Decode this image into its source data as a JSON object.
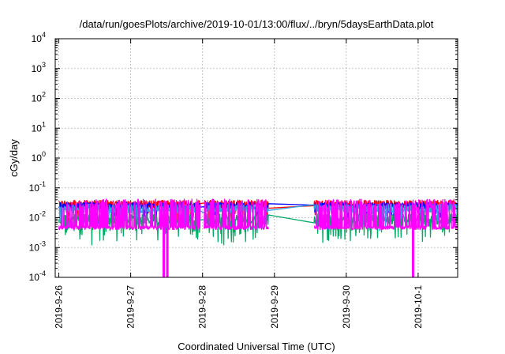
{
  "chart_data": {
    "type": "line",
    "title": "/data/run/goesPlots/archive/2019-10-01/13:00/flux/../bryn/5daysEarthData.plot",
    "xlabel": "Coordinated Universal Time (UTC)",
    "ylabel": "cGy/day",
    "x_unit": "days",
    "xlim": [
      -0.05,
      5.55
    ],
    "ylim": [
      0.0001,
      10000
    ],
    "y_scale": "log",
    "grid": true,
    "legend": "none",
    "x_ticks": [
      {
        "pos": 0.0,
        "label": "2019-9-26"
      },
      {
        "pos": 1.0,
        "label": "2019-9-27"
      },
      {
        "pos": 2.0,
        "label": "2019-9-28"
      },
      {
        "pos": 3.0,
        "label": "2019-9-29"
      },
      {
        "pos": 4.0,
        "label": "2019-9-30"
      },
      {
        "pos": 5.0,
        "label": "2019-10-1"
      }
    ],
    "y_ticks": [
      {
        "value": 0.0001,
        "base": "10",
        "exp": "-4"
      },
      {
        "value": 0.001,
        "base": "10",
        "exp": "-3"
      },
      {
        "value": 0.01,
        "base": "10",
        "exp": "-2"
      },
      {
        "value": 0.1,
        "base": "10",
        "exp": "-1"
      },
      {
        "value": 1,
        "base": "10",
        "exp": "0"
      },
      {
        "value": 10,
        "base": "10",
        "exp": "1"
      },
      {
        "value": 100,
        "base": "10",
        "exp": "2"
      },
      {
        "value": 1000,
        "base": "10",
        "exp": "3"
      },
      {
        "value": 10000,
        "base": "10",
        "exp": "4"
      }
    ],
    "gaps": [
      [
        1.97,
        2.02
      ],
      [
        2.92,
        3.55
      ]
    ],
    "series": [
      {
        "color": "#ff0000",
        "base": 0.028,
        "jitter": 0.55,
        "dips": 0.03,
        "dip_depth": 0.35
      },
      {
        "color": "#0000ff",
        "base": 0.025,
        "jitter": 0.45,
        "dips": 0.05,
        "dip_depth": 0.3
      },
      {
        "color": "#00aa66",
        "base": 0.009,
        "jitter": 0.7,
        "dips": 0.12,
        "dip_depth": 0.5
      },
      {
        "color": "#2aa8e0",
        "base": 0.02,
        "jitter": 0.6,
        "dips": 0.06,
        "dip_depth": 0.4
      },
      {
        "color": "#ff00ff",
        "base": 0.0046,
        "jitter": 0.25,
        "dips": 0.0,
        "dip_depth": 0.0,
        "spikes_up": 0.3,
        "spike_to": 0.035,
        "dropouts": [
          1.46,
          1.51,
          4.93
        ]
      }
    ]
  }
}
